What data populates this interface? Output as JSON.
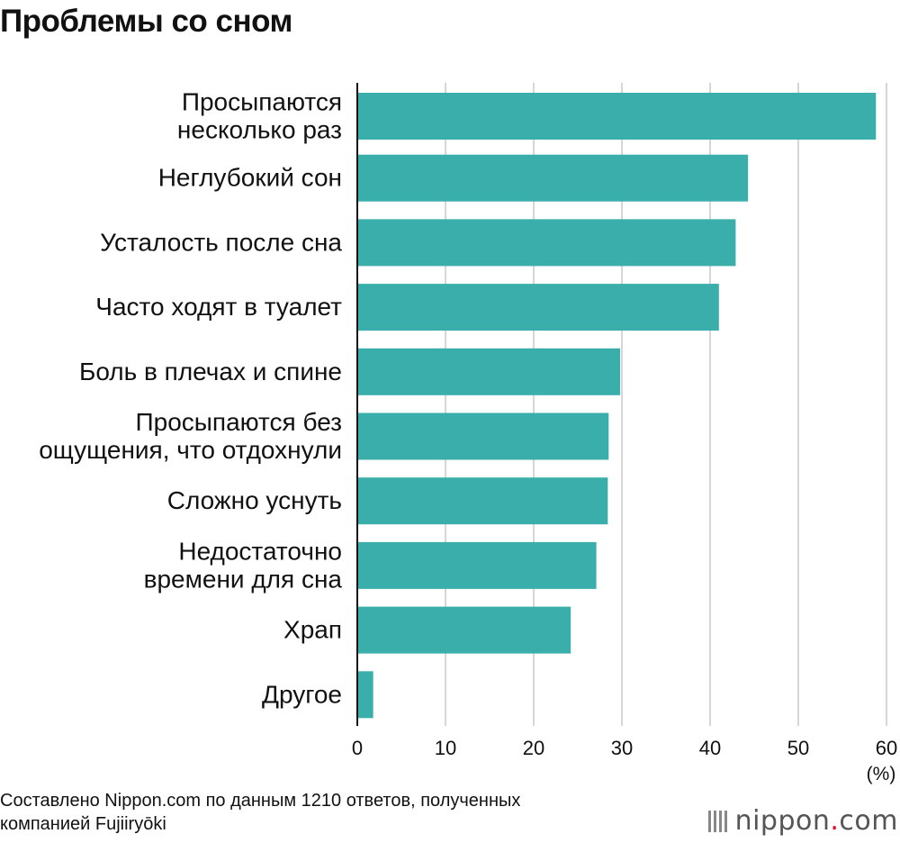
{
  "title": "Проблемы со сном",
  "footer": {
    "source_line1": "Составлено Nippon.com по данным 1210 ответов, полученных",
    "source_line2": "компанией Fujiiryōki"
  },
  "logo": {
    "text": "nippon",
    "dot": ".",
    "suffix": "com"
  },
  "chart_data": {
    "type": "bar",
    "orientation": "horizontal",
    "title": "Проблемы со сном",
    "categories": [
      [
        "Просыпаются",
        "несколько раз"
      ],
      [
        "Неглубокий сон"
      ],
      [
        "Усталость после сна"
      ],
      [
        "Часто ходят в туалет"
      ],
      [
        "Боль в плечах и спине"
      ],
      [
        "Просыпаются без",
        "ощущения, что отдохнули"
      ],
      [
        "Сложно уснуть"
      ],
      [
        "Недостаточно",
        "времени для сна"
      ],
      [
        "Храп"
      ],
      [
        "Другое"
      ]
    ],
    "values": [
      58.8,
      44.3,
      42.9,
      41.0,
      29.8,
      28.5,
      28.4,
      27.1,
      24.2,
      1.8
    ],
    "xlim": [
      0,
      60
    ],
    "xticks": [
      0,
      10,
      20,
      30,
      40,
      50,
      60
    ],
    "xunit": "(%)",
    "grid": true,
    "bar_color": "#3aaeaa"
  }
}
